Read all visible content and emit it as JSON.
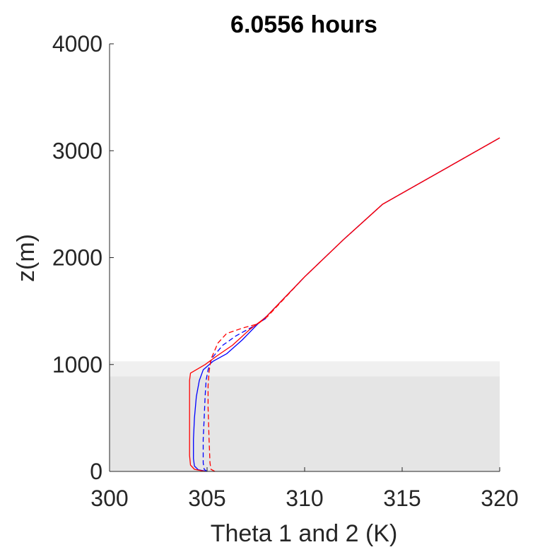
{
  "chart_data": {
    "type": "line",
    "title": "6.0556 hours",
    "xlabel": "Theta 1 and 2 (K)",
    "ylabel": "z(m)",
    "xlim": [
      300,
      320
    ],
    "ylim": [
      0,
      4000
    ],
    "xticks": [
      "300",
      "305",
      "310",
      "315",
      "320"
    ],
    "yticks": [
      "0",
      "1000",
      "2000",
      "3000",
      "4000"
    ],
    "grid": false,
    "legend": "none",
    "shaded_bands": [
      {
        "y": [
          0,
          890
        ],
        "color": "#e5e5e5"
      },
      {
        "y": [
          890,
          1030
        ],
        "color": "#f0f0f0"
      }
    ],
    "series": [
      {
        "color": "#0000ff",
        "dash": "solid",
        "points": [
          [
            305.0,
            0
          ],
          [
            304.55,
            15
          ],
          [
            304.35,
            50
          ],
          [
            304.3,
            120
          ],
          [
            304.3,
            300
          ],
          [
            304.35,
            500
          ],
          [
            304.45,
            700
          ],
          [
            304.6,
            850
          ],
          [
            304.8,
            950
          ],
          [
            305.3,
            1030
          ],
          [
            306.0,
            1100
          ],
          [
            306.8,
            1230
          ],
          [
            307.6,
            1380
          ],
          [
            308.1,
            1460
          ],
          [
            310.0,
            1820
          ],
          [
            312.0,
            2170
          ],
          [
            314.0,
            2500
          ],
          [
            320.0,
            3120
          ]
        ]
      },
      {
        "color": "#0000ff",
        "dash": "dashed",
        "points": [
          [
            305.0,
            0
          ],
          [
            304.85,
            20
          ],
          [
            304.8,
            80
          ],
          [
            304.8,
            300
          ],
          [
            304.85,
            500
          ],
          [
            304.9,
            700
          ],
          [
            304.95,
            850
          ],
          [
            305.05,
            950
          ],
          [
            305.25,
            1060
          ],
          [
            305.8,
            1180
          ],
          [
            306.5,
            1270
          ],
          [
            307.3,
            1350
          ],
          [
            308.0,
            1430
          ],
          [
            308.1,
            1460
          ],
          [
            310.0,
            1820
          ],
          [
            312.0,
            2170
          ],
          [
            314.0,
            2500
          ],
          [
            320.0,
            3120
          ]
        ]
      },
      {
        "color": "#ff0000",
        "dash": "solid",
        "points": [
          [
            304.9,
            0
          ],
          [
            304.35,
            20
          ],
          [
            304.15,
            60
          ],
          [
            304.1,
            150
          ],
          [
            304.1,
            400
          ],
          [
            304.1,
            700
          ],
          [
            304.1,
            850
          ],
          [
            304.15,
            920
          ],
          [
            304.9,
            1000
          ],
          [
            305.5,
            1080
          ],
          [
            306.3,
            1180
          ],
          [
            307.2,
            1330
          ],
          [
            308.0,
            1440
          ],
          [
            308.1,
            1460
          ],
          [
            310.0,
            1820
          ],
          [
            312.0,
            2170
          ],
          [
            314.0,
            2500
          ],
          [
            320.0,
            3120
          ]
        ]
      },
      {
        "color": "#ff0000",
        "dash": "dashed",
        "points": [
          [
            305.4,
            0
          ],
          [
            305.2,
            20
          ],
          [
            305.15,
            80
          ],
          [
            305.1,
            300
          ],
          [
            305.05,
            600
          ],
          [
            305.05,
            800
          ],
          [
            305.1,
            930
          ],
          [
            305.2,
            1050
          ],
          [
            305.55,
            1200
          ],
          [
            306.0,
            1290
          ],
          [
            306.8,
            1340
          ],
          [
            307.6,
            1380
          ],
          [
            308.1,
            1450
          ],
          [
            310.0,
            1820
          ],
          [
            312.0,
            2170
          ],
          [
            314.0,
            2500
          ],
          [
            320.0,
            3120
          ]
        ]
      }
    ]
  }
}
